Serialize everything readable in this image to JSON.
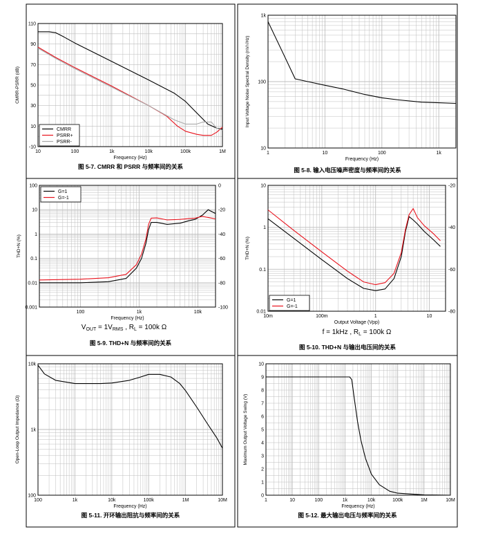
{
  "page_grid": {
    "rows": 3,
    "cols": 2
  },
  "colors": {
    "black": "#000000",
    "red": "#e8101a",
    "gray": "#a8a8a8",
    "grid": "#bdbdbd",
    "border": "#000000"
  },
  "chart_data": [
    {
      "type": "line",
      "caption": "图 5-7. CMRR 和 PSRR 与频率间的关系",
      "xlabel": "Frequency (Hz)",
      "ylabel": "CMRR-PSRR (dB)",
      "xscale": "log",
      "xlim": [
        10,
        1000000
      ],
      "ylim": [
        -10,
        110
      ],
      "xticks": [
        {
          "v": 10,
          "t": "10"
        },
        {
          "v": 100,
          "t": "100"
        },
        {
          "v": 1000,
          "t": "1k"
        },
        {
          "v": 10000,
          "t": "10k"
        },
        {
          "v": 100000,
          "t": "100k"
        },
        {
          "v": 1000000,
          "t": "1M"
        }
      ],
      "yticks": [
        {
          "v": -10,
          "t": "-10"
        },
        {
          "v": 10,
          "t": "10"
        },
        {
          "v": 30,
          "t": "30"
        },
        {
          "v": 50,
          "t": "50"
        },
        {
          "v": 70,
          "t": "70"
        },
        {
          "v": 90,
          "t": "90"
        },
        {
          "v": 110,
          "t": "110"
        }
      ],
      "legend": {
        "position": "bottom-left",
        "entries": [
          "CMRR",
          "PSRR+",
          "PSRR-"
        ]
      },
      "series": [
        {
          "name": "CMRR",
          "color": "#000000",
          "x": [
            10,
            20,
            30,
            50,
            100,
            1000,
            10000,
            50000,
            100000,
            200000,
            400000,
            700000,
            1000000
          ],
          "y": [
            102,
            102,
            101,
            97,
            91,
            73,
            55,
            42,
            34,
            23,
            12,
            8,
            7
          ]
        },
        {
          "name": "PSRR+",
          "color": "#e8101a",
          "x": [
            10,
            30,
            100,
            1000,
            10000,
            30000,
            60000,
            100000,
            200000,
            300000,
            500000,
            700000,
            1000000
          ],
          "y": [
            87,
            77,
            67,
            49,
            30,
            20,
            10,
            5,
            2,
            1,
            1,
            4,
            9
          ]
        },
        {
          "name": "PSRR-",
          "color": "#a8a8a8",
          "x": [
            10,
            30,
            100,
            1000,
            10000,
            50000,
            100000,
            200000,
            300000,
            500000,
            700000,
            1000000
          ],
          "y": [
            86,
            76,
            66,
            48,
            30,
            16,
            12,
            12,
            14,
            14,
            8,
            6
          ]
        }
      ]
    },
    {
      "type": "line",
      "caption": "图 5-8. 输入电压噪声密度与频率间的关系",
      "xlabel": "Frequency (Hz)",
      "ylabel": "Input Voltage Noise Spectral Density (nV/√Hz)",
      "xscale": "log",
      "xlim": [
        1,
        2000
      ],
      "yscale": "log",
      "ylim": [
        10,
        1000
      ],
      "xticks": [
        {
          "v": 1,
          "t": "1"
        },
        {
          "v": 10,
          "t": "10"
        },
        {
          "v": 100,
          "t": "100"
        },
        {
          "v": 1000,
          "t": "1k"
        }
      ],
      "yticks": [
        {
          "v": 10,
          "t": "10"
        },
        {
          "v": 100,
          "t": "100"
        },
        {
          "v": 1000,
          "t": "1k"
        }
      ],
      "series": [
        {
          "name": "",
          "color": "#000000",
          "x": [
            1,
            2,
            3,
            5,
            10,
            20,
            50,
            100,
            200,
            500,
            1000,
            2000
          ],
          "y": [
            800,
            230,
            110,
            100,
            88,
            78,
            64,
            57,
            53,
            49,
            48,
            47
          ]
        }
      ]
    },
    {
      "type": "line",
      "caption": "图 5-9. THD+N 与频率间的关系",
      "xlabel": "Frequency (Hz)",
      "ylabel": "THD+N (%)",
      "y2label": "",
      "note": "V_OUT = 1V_RMS , R_L = 100k Ω",
      "xscale": "log",
      "xlim": [
        20,
        20000
      ],
      "yscale": "log",
      "ylim": [
        0.001,
        100
      ],
      "y2lim": [
        -100,
        0
      ],
      "xticks": [
        {
          "v": 100,
          "t": "100"
        },
        {
          "v": 1000,
          "t": "1k"
        },
        {
          "v": 10000,
          "t": "10k"
        }
      ],
      "yticks": [
        {
          "v": 0.001,
          "t": "0.001"
        },
        {
          "v": 0.01,
          "t": "0.01"
        },
        {
          "v": 0.1,
          "t": "0.1"
        },
        {
          "v": 1,
          "t": "1"
        },
        {
          "v": 10,
          "t": "10"
        },
        {
          "v": 100,
          "t": "100"
        }
      ],
      "y2ticks": [
        {
          "v": -100,
          "t": "-100"
        },
        {
          "v": -80,
          "t": "-80"
        },
        {
          "v": -60,
          "t": "-60"
        },
        {
          "v": -40,
          "t": "-40"
        },
        {
          "v": -20,
          "t": "-20"
        },
        {
          "v": 0,
          "t": "0"
        }
      ],
      "legend": {
        "position": "top-left",
        "entries": [
          "G=1",
          "G=-1"
        ]
      },
      "series": [
        {
          "name": "G=1",
          "color": "#000000",
          "x": [
            20,
            100,
            300,
            600,
            900,
            1100,
            1300,
            1450,
            1600,
            2000,
            3000,
            5000,
            7000,
            9000,
            12000,
            15000,
            20000
          ],
          "y": [
            0.01,
            0.01,
            0.011,
            0.015,
            0.04,
            0.1,
            0.4,
            1.5,
            3,
            3,
            2.5,
            2.8,
            3.5,
            4,
            6,
            10,
            7
          ]
        },
        {
          "name": "G=-1",
          "color": "#e8101a",
          "x": [
            20,
            100,
            300,
            600,
            900,
            1100,
            1300,
            1450,
            1600,
            2000,
            3000,
            5000,
            7000,
            9000,
            12000,
            15000,
            20000
          ],
          "y": [
            0.013,
            0.014,
            0.016,
            0.022,
            0.055,
            0.15,
            0.6,
            2.5,
            4.5,
            4.6,
            3.8,
            4,
            4.3,
            4.5,
            5.3,
            4.8,
            4.2
          ]
        }
      ]
    },
    {
      "type": "line",
      "caption": "图 5-10. THD+N 与输出电压间的关系",
      "xlabel": "Output Voltage (Vpp)",
      "ylabel": "THD+N (%)",
      "note": "f = 1kHz , R_L = 100k Ω",
      "xscale": "log",
      "xlim": [
        0.01,
        20
      ],
      "yscale": "log",
      "ylim": [
        0.01,
        10
      ],
      "y2lim": [
        -80,
        -20
      ],
      "xticks": [
        {
          "v": 0.01,
          "t": "10m"
        },
        {
          "v": 0.1,
          "t": "100m"
        },
        {
          "v": 1,
          "t": "1"
        },
        {
          "v": 10,
          "t": "10"
        }
      ],
      "yticks": [
        {
          "v": 0.01,
          "t": "0.01"
        },
        {
          "v": 0.1,
          "t": "0.1"
        },
        {
          "v": 1,
          "t": "1"
        },
        {
          "v": 10,
          "t": "10"
        }
      ],
      "y2ticks": [
        {
          "v": -80,
          "t": "-80"
        },
        {
          "v": -60,
          "t": "-60"
        },
        {
          "v": -40,
          "t": "-40"
        },
        {
          "v": -20,
          "t": "-20"
        }
      ],
      "legend": {
        "position": "bottom-left",
        "entries": [
          "G=1",
          "G=-1"
        ]
      },
      "series": [
        {
          "name": "G=1",
          "color": "#000000",
          "x": [
            0.01,
            0.03,
            0.1,
            0.3,
            0.6,
            1,
            1.5,
            2.2,
            3,
            3.6,
            4.2,
            5,
            6,
            8,
            12,
            16
          ],
          "y": [
            1.6,
            0.55,
            0.17,
            0.06,
            0.035,
            0.031,
            0.034,
            0.06,
            0.2,
            0.8,
            1.8,
            1.5,
            1.2,
            0.8,
            0.5,
            0.35
          ]
        },
        {
          "name": "G=-1",
          "color": "#e8101a",
          "x": [
            0.01,
            0.03,
            0.1,
            0.3,
            0.6,
            1,
            1.5,
            2.2,
            3,
            3.6,
            4.2,
            5,
            6,
            8,
            12,
            16
          ],
          "y": [
            2.6,
            0.85,
            0.26,
            0.09,
            0.05,
            0.043,
            0.048,
            0.08,
            0.25,
            0.9,
            2,
            2.8,
            1.7,
            1.1,
            0.7,
            0.48
          ]
        }
      ]
    },
    {
      "type": "line",
      "caption": "图 5-11. 开环输出阻抗与频率间的关系",
      "xlabel": "Frequency (Hz)",
      "ylabel": "Open-Loop Output Impedance (Ω)",
      "xscale": "log",
      "xlim": [
        100,
        10000000
      ],
      "yscale": "log",
      "ylim": [
        100,
        10000
      ],
      "xticks": [
        {
          "v": 100,
          "t": "100"
        },
        {
          "v": 1000,
          "t": "1k"
        },
        {
          "v": 10000,
          "t": "10k"
        },
        {
          "v": 100000,
          "t": "100k"
        },
        {
          "v": 1000000,
          "t": "1M"
        },
        {
          "v": 10000000,
          "t": "10M"
        }
      ],
      "yticks": [
        {
          "v": 100,
          "t": "100"
        },
        {
          "v": 1000,
          "t": "1k"
        },
        {
          "v": 10000,
          "t": "10k"
        }
      ],
      "series": [
        {
          "name": "",
          "color": "#000000",
          "x": [
            100,
            150,
            300,
            1000,
            5000,
            10000,
            30000,
            60000,
            100000,
            200000,
            400000,
            700000,
            1000000,
            2000000,
            4000000,
            7000000,
            10000000
          ],
          "y": [
            9500,
            7000,
            5600,
            5000,
            5000,
            5100,
            5600,
            6300,
            6900,
            6900,
            6300,
            5000,
            3900,
            2200,
            1200,
            750,
            520
          ]
        }
      ]
    },
    {
      "type": "line",
      "caption": "图 5-12. 最大输出电压与频率间的关系",
      "xlabel": "Frequency (Hz)",
      "ylabel": "Maximum Output Voltage Swing (V)",
      "xscale": "log",
      "xlim": [
        1,
        10000000
      ],
      "ylim": [
        0,
        10
      ],
      "xticks": [
        {
          "v": 1,
          "t": "1"
        },
        {
          "v": 10,
          "t": "10"
        },
        {
          "v": 100,
          "t": "100"
        },
        {
          "v": 1000,
          "t": "1k"
        },
        {
          "v": 10000,
          "t": "10k"
        },
        {
          "v": 100000,
          "t": "100k"
        },
        {
          "v": 1000000,
          "t": "1M"
        },
        {
          "v": 10000000,
          "t": "10M"
        }
      ],
      "yticks": [
        {
          "v": 0,
          "t": "0"
        },
        {
          "v": 1,
          "t": "1"
        },
        {
          "v": 2,
          "t": "2"
        },
        {
          "v": 3,
          "t": "3"
        },
        {
          "v": 4,
          "t": "4"
        },
        {
          "v": 5,
          "t": "5"
        },
        {
          "v": 6,
          "t": "6"
        },
        {
          "v": 7,
          "t": "7"
        },
        {
          "v": 8,
          "t": "8"
        },
        {
          "v": 9,
          "t": "9"
        },
        {
          "v": 10,
          "t": "10"
        }
      ],
      "series": [
        {
          "name": "",
          "color": "#000000",
          "x": [
            1,
            1000,
            1500,
            1800,
            2200,
            3000,
            4000,
            6000,
            10000,
            20000,
            50000,
            100000,
            1000000,
            10000000
          ],
          "y": [
            9,
            9,
            9,
            8.8,
            7.5,
            5.6,
            4.2,
            2.8,
            1.6,
            0.8,
            0.3,
            0.15,
            0.02,
            0
          ]
        }
      ]
    }
  ]
}
